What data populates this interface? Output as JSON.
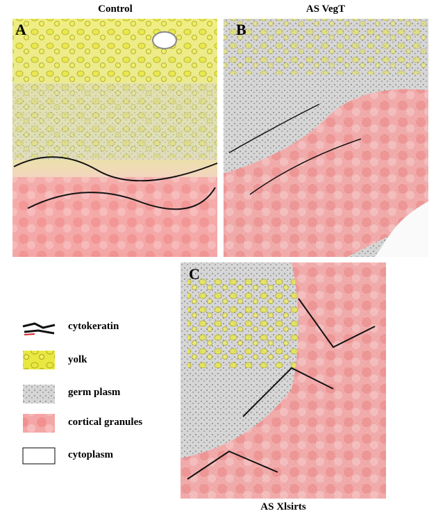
{
  "panels": [
    {
      "title": "Control",
      "label": "A"
    },
    {
      "title": "AS VegT",
      "label": "B"
    },
    {
      "title": "AS Xlsirts",
      "label": "C"
    }
  ],
  "legend": [
    {
      "label": "cytokeratin"
    },
    {
      "label": "yolk"
    },
    {
      "label": "germ plasm"
    },
    {
      "label": "cortical granules"
    },
    {
      "label": "cytoplasm"
    }
  ]
}
